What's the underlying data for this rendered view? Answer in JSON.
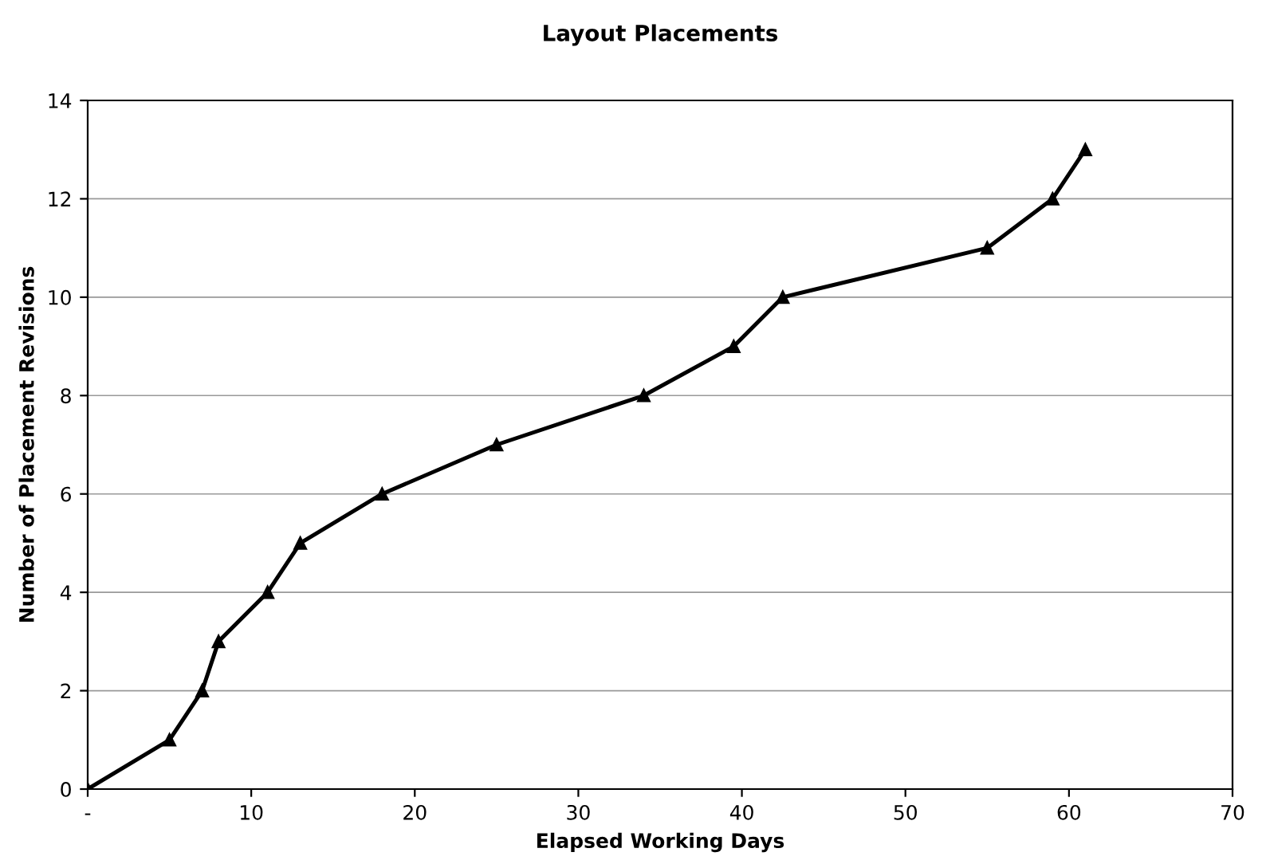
{
  "chart_data": {
    "type": "line",
    "title": "Layout Placements",
    "xlabel": "Elapsed Working Days",
    "ylabel": "Number of Placement Revisions",
    "x": [
      0,
      5,
      7,
      8,
      11,
      13,
      18,
      25,
      34,
      39.5,
      42.5,
      55,
      59,
      61
    ],
    "series": [
      {
        "color": "#000000",
        "values": [
          0,
          1,
          2,
          3,
          4,
          5,
          6,
          7,
          8,
          9,
          10,
          11,
          12,
          13
        ]
      }
    ],
    "xlim": [
      0,
      70
    ],
    "xticks": [
      {
        "value": 0,
        "label": "-"
      },
      10,
      20,
      30,
      40,
      50,
      60,
      70
    ],
    "ylim": [
      0,
      14
    ],
    "yticks": [
      0,
      2,
      4,
      6,
      8,
      10,
      12,
      14
    ],
    "grid": "y",
    "marker": "triangle",
    "line_style": "solid"
  }
}
